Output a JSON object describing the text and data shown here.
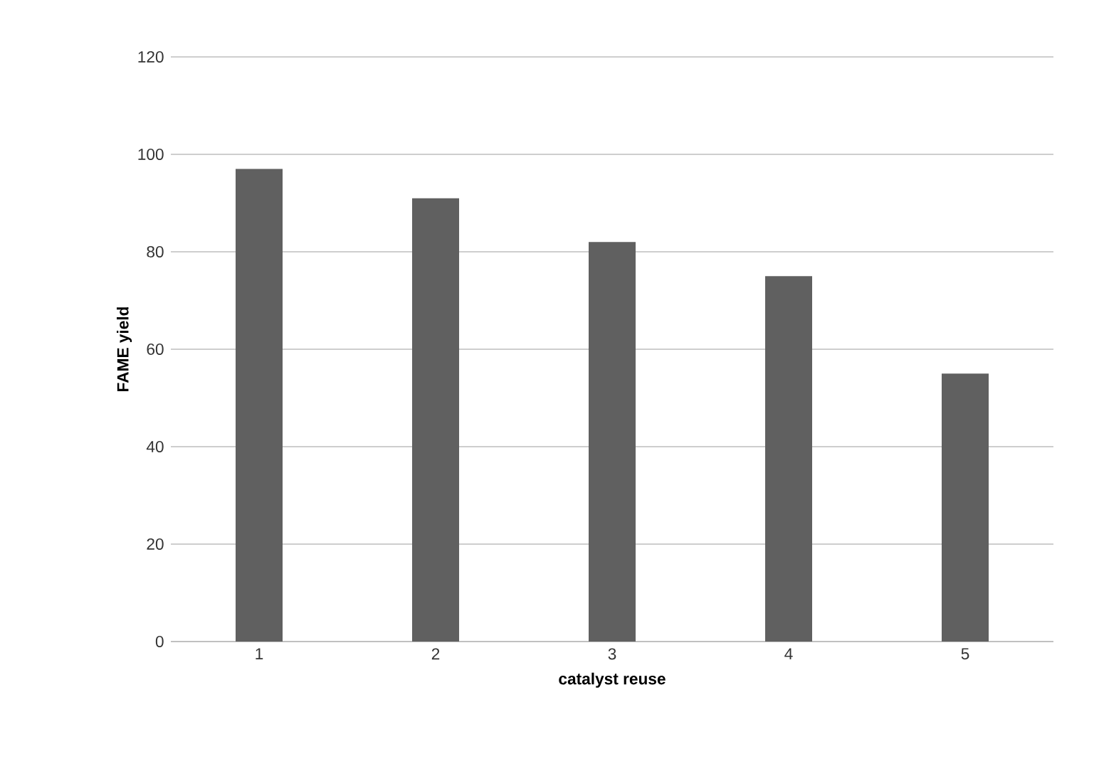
{
  "chart_data": {
    "type": "bar",
    "xlabel": "catalyst reuse",
    "ylabel": "FAME yield",
    "categories": [
      "1",
      "2",
      "3",
      "4",
      "5"
    ],
    "values": [
      97,
      91,
      82,
      75,
      55
    ],
    "color": "#606060",
    "ylim": [
      0,
      120
    ],
    "yticks": [
      0,
      20,
      40,
      60,
      80,
      100,
      120
    ],
    "grid": "y"
  }
}
